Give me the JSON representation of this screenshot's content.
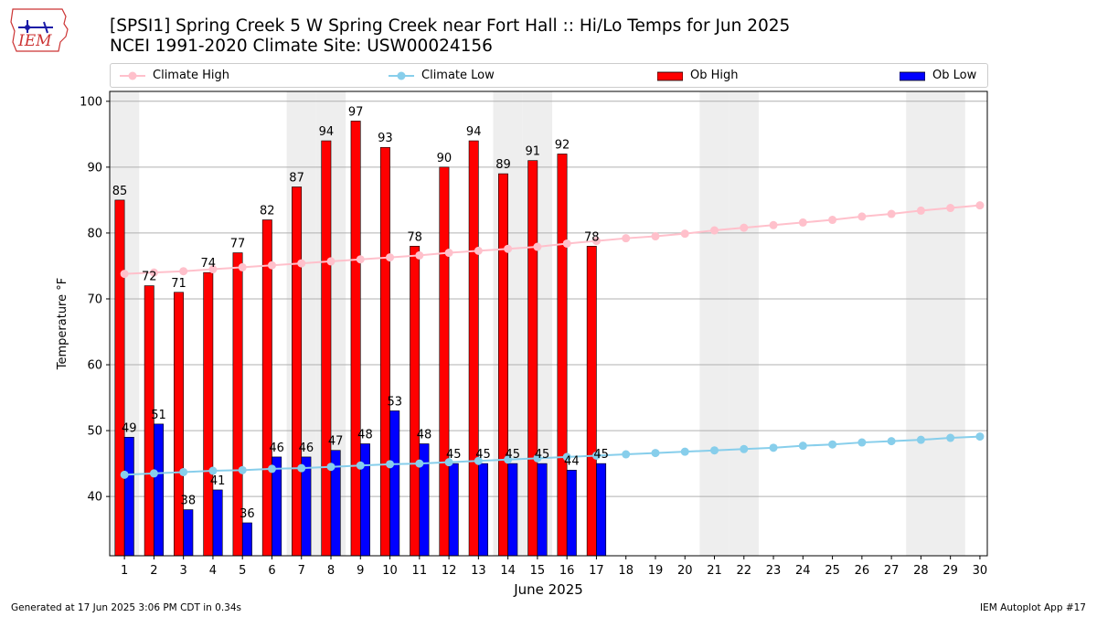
{
  "header": {
    "logo_text": "IEM",
    "title": "[SPSI1] Spring Creek 5 W Spring Creek near Fort Hall :: Hi/Lo Temps for Jun 2025",
    "subtitle": "NCEI 1991-2020 Climate Site: USW00024156"
  },
  "legend": {
    "climate_high": "Climate High",
    "climate_low": "Climate Low",
    "ob_high": "Ob High",
    "ob_low": "Ob Low"
  },
  "footer": {
    "generated": "Generated at 17 Jun 2025 3:06 PM CDT in 0.34s",
    "app": "IEM Autoplot App #17"
  },
  "colors": {
    "ob_high": "#ff0000",
    "ob_low": "#0000ff",
    "climate_high": "#ffc0cb",
    "climate_low": "#87ceeb",
    "weekend_band": "#eeeeee",
    "grid": "#b0b0b0"
  },
  "chart_data": {
    "type": "bar",
    "xlabel": "June 2025",
    "ylabel": "Temperature °F",
    "ylim": [
      31,
      101.5
    ],
    "yticks": [
      40,
      50,
      60,
      70,
      80,
      90,
      100
    ],
    "grid": "horizontal",
    "legend_placement": "top",
    "days": [
      1,
      2,
      3,
      4,
      5,
      6,
      7,
      8,
      9,
      10,
      11,
      12,
      13,
      14,
      15,
      16,
      17,
      18,
      19,
      20,
      21,
      22,
      23,
      24,
      25,
      26,
      27,
      28,
      29,
      30
    ],
    "shaded_days": [
      1,
      7,
      8,
      14,
      15,
      21,
      22,
      28,
      29
    ],
    "series": [
      {
        "name": "Ob High",
        "kind": "bar",
        "values": [
          85,
          72,
          71,
          74,
          77,
          82,
          87,
          94,
          97,
          93,
          78,
          90,
          94,
          89,
          91,
          92,
          78
        ]
      },
      {
        "name": "Ob Low",
        "kind": "bar",
        "values": [
          49,
          51,
          38,
          41,
          36,
          46,
          46,
          47,
          48,
          53,
          48,
          45,
          45,
          45,
          45,
          44,
          45
        ]
      },
      {
        "name": "Climate High",
        "kind": "line",
        "values": [
          73.8,
          74.0,
          74.2,
          74.5,
          74.8,
          75.1,
          75.4,
          75.7,
          76.0,
          76.3,
          76.6,
          77.0,
          77.3,
          77.6,
          77.9,
          78.4,
          78.8,
          79.2,
          79.5,
          79.9,
          80.4,
          80.8,
          81.2,
          81.6,
          82.0,
          82.5,
          82.9,
          83.4,
          83.8,
          84.2
        ]
      },
      {
        "name": "Climate Low",
        "kind": "line",
        "values": [
          43.3,
          43.5,
          43.7,
          43.9,
          44.0,
          44.2,
          44.3,
          44.5,
          44.7,
          44.9,
          45.0,
          45.2,
          45.4,
          45.6,
          45.8,
          46.0,
          46.2,
          46.4,
          46.6,
          46.8,
          47.0,
          47.2,
          47.4,
          47.7,
          47.9,
          48.2,
          48.4,
          48.6,
          48.9,
          49.1
        ]
      }
    ],
    "bar_labels": {
      "high": [
        "85",
        "72",
        "71",
        "74",
        "77",
        "82",
        "87",
        "94",
        "97",
        "93",
        "78",
        "90",
        "94",
        "89",
        "91",
        "92",
        "78"
      ],
      "low": [
        "49",
        "51",
        "38",
        "41",
        "36",
        "46",
        "46",
        "47",
        "48",
        "53",
        "48",
        "45",
        "45",
        "45",
        "45",
        "44",
        "45"
      ]
    }
  }
}
